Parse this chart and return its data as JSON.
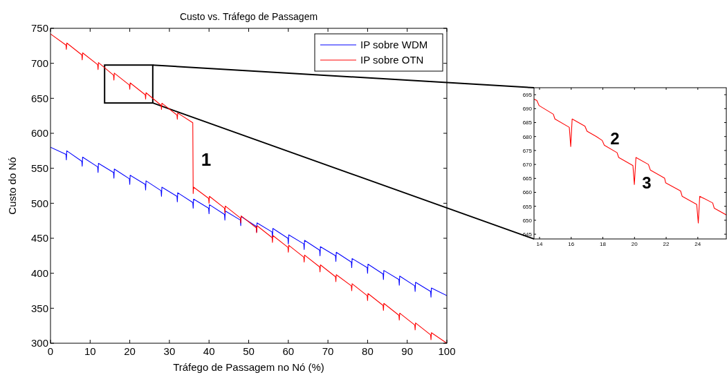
{
  "chart_data": [
    {
      "type": "line",
      "title": "Custo vs. Tráfego de Passagem",
      "xlabel": "Tráfego de Passagem no Nó (%)",
      "ylabel": "Custo do Nó",
      "xlim": [
        0,
        100
      ],
      "ylim": [
        300,
        750
      ],
      "xticks": [
        0,
        10,
        20,
        30,
        40,
        50,
        60,
        70,
        80,
        90,
        100
      ],
      "yticks": [
        300,
        350,
        400,
        450,
        500,
        550,
        600,
        650,
        700,
        750
      ],
      "legend": "top right",
      "series": [
        {
          "name": "IP sobre WDM",
          "color": "#0000ff",
          "x": [
            0,
            3.9,
            4,
            4.1,
            7.9,
            8,
            8.1,
            11.9,
            12,
            12.1,
            15.9,
            16,
            16.1,
            19.9,
            20,
            20.1,
            23.9,
            24,
            24.1,
            27.9,
            28,
            28.1,
            31.9,
            32,
            32.1,
            35.9,
            36,
            36.1,
            39.9,
            40,
            40.1,
            43.9,
            44,
            44.1,
            47.9,
            48,
            48.1,
            51.9,
            52,
            52.1,
            55.9,
            56,
            56.1,
            59.9,
            60,
            60.1,
            63.9,
            64,
            64.1,
            67.9,
            68,
            68.1,
            71.9,
            72,
            72.1,
            75.9,
            76,
            76.1,
            79.9,
            80,
            80.1,
            83.9,
            84,
            84.1,
            87.9,
            88,
            88.1,
            91.9,
            92,
            92.1,
            95.9,
            96,
            96.1,
            100
          ],
          "values": [
            580,
            570,
            562,
            575,
            560,
            553,
            566,
            552,
            544,
            557,
            544,
            536,
            549,
            535,
            527,
            540,
            527,
            519,
            532,
            518,
            510,
            523,
            510,
            502,
            515,
            501,
            493,
            506,
            493,
            485,
            498,
            484,
            476,
            489,
            476,
            468,
            481,
            467,
            459,
            472,
            459,
            451,
            464,
            450,
            442,
            455,
            442,
            434,
            447,
            433,
            425,
            438,
            425,
            417,
            430,
            416,
            408,
            421,
            408,
            400,
            413,
            399,
            391,
            404,
            391,
            383,
            396,
            382,
            374,
            387,
            374,
            366,
            379,
            368
          ]
        },
        {
          "name": "IP sobre OTN",
          "color": "#ff0000",
          "x": [
            0,
            3.9,
            4,
            4.1,
            7.9,
            8,
            8.1,
            11.9,
            12,
            12.1,
            15.9,
            16,
            16.1,
            19.9,
            20,
            20.1,
            23.9,
            24,
            24.1,
            27.9,
            28,
            28.1,
            31.9,
            32,
            32.1,
            35.9,
            36,
            36.1,
            39.9,
            40,
            40.1,
            43.9,
            44,
            44.1,
            47.9,
            48,
            48.1,
            51.9,
            52,
            52.1,
            55.9,
            56,
            56.1,
            59.9,
            60,
            60.1,
            63.9,
            64,
            64.1,
            67.9,
            68,
            68.1,
            71.9,
            72,
            72.1,
            75.9,
            76,
            76.1,
            79.9,
            80,
            80.1,
            83.9,
            84,
            84.1,
            87.9,
            88,
            88.1,
            91.9,
            92,
            92.1,
            95.9,
            96,
            96.1,
            100
          ],
          "values": [
            742,
            726,
            720,
            729,
            712,
            705,
            715,
            698,
            691,
            701,
            683,
            676,
            686,
            669,
            663,
            672,
            655,
            649,
            658,
            640,
            634,
            643,
            626,
            620,
            629,
            615,
            514,
            523,
            507,
            500,
            510,
            493,
            486,
            496,
            479,
            472,
            482,
            465,
            458,
            468,
            451,
            444,
            454,
            437,
            430,
            440,
            423,
            416,
            426,
            409,
            402,
            412,
            395,
            388,
            398,
            382,
            375,
            385,
            368,
            361,
            371,
            354,
            347,
            357,
            340,
            333,
            343,
            326,
            319,
            329,
            312,
            305,
            315,
            300
          ]
        }
      ],
      "annotations": [
        "1"
      ]
    },
    {
      "type": "line",
      "xlim": [
        13.65,
        25.8
      ],
      "ylim": [
        643.3,
        697.5
      ],
      "xticks": [
        14,
        16,
        18,
        20,
        22,
        24
      ],
      "yticks": [
        645,
        650,
        655,
        660,
        665,
        670,
        675,
        680,
        685,
        690,
        695
      ],
      "series": [
        {
          "color": "#ff0000",
          "x": [
            13.65,
            13.83,
            13.97,
            14.87,
            14.97,
            15.88,
            15.97,
            16.06,
            16.87,
            17.0,
            17.59,
            17.96,
            18.09,
            18.9,
            19.0,
            19.9,
            19.99,
            20.09,
            20.88,
            21.0,
            21.9,
            21.97,
            22.91,
            23.01,
            23.93,
            24.03,
            24.12,
            24.94,
            25.04,
            25.8
          ],
          "values": [
            693.4,
            692.9,
            691.1,
            688.0,
            686.3,
            683.3,
            676.4,
            686.3,
            683.7,
            681.9,
            680.0,
            678.6,
            676.9,
            674.2,
            672.5,
            669.6,
            662.8,
            672.5,
            670.0,
            668.0,
            665.1,
            663.4,
            660.5,
            658.6,
            655.7,
            649.0,
            658.6,
            656.2,
            654.3,
            651.9
          ]
        }
      ],
      "annotations": [
        "2",
        "3"
      ]
    }
  ]
}
